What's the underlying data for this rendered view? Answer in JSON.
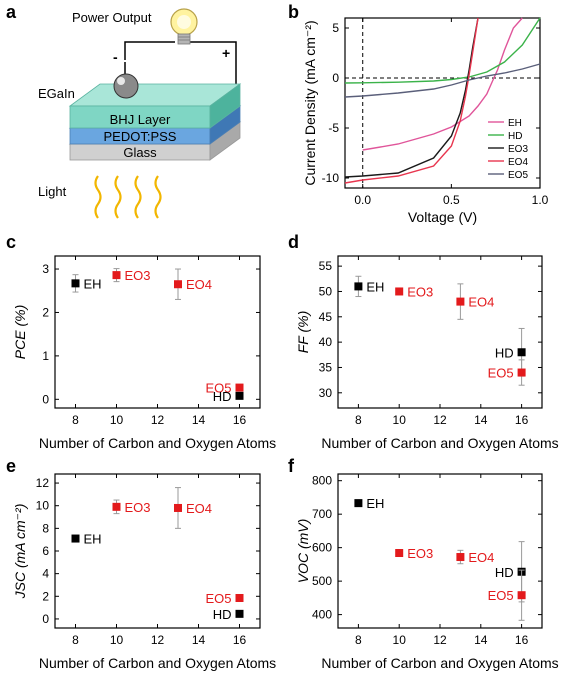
{
  "panels": {
    "a": "a",
    "b": "b",
    "c": "c",
    "d": "d",
    "e": "e",
    "f": "f"
  },
  "schematic": {
    "power_output": "Power Output",
    "minus": "-",
    "plus": "+",
    "egain": "EGaIn",
    "bhj": "BHJ Layer",
    "pedot": "PEDOT:PSS",
    "glass": "Glass",
    "light": "Light",
    "colors": {
      "bhj": "#7fd6c4",
      "pedot": "#6aa6e0",
      "glass": "#d8d8d8",
      "bulb": "#fff3a0",
      "rays": "#f2b600"
    }
  },
  "colors": {
    "black": "#000000",
    "red": "#e31a1c",
    "EH": "#e0559a",
    "HD": "#3bb34a",
    "EO3": "#1a1a1a",
    "EO4": "#e8364f",
    "EO5": "#5a5f7a",
    "error": "#9a9a9a"
  },
  "chart_data": [
    {
      "type": "line",
      "panel": "b",
      "xlabel": "Voltage (V)",
      "ylabel": "Current Density (mA cm⁻²)",
      "xlim": [
        -0.1,
        1.0
      ],
      "ylim": [
        -11,
        6
      ],
      "xticks": [
        "0.0",
        "0.5",
        "1.0"
      ],
      "yticks": [
        "-10",
        "-5",
        "0",
        "5"
      ],
      "legend": "bottom-right",
      "series": [
        {
          "name": "EH",
          "x": [
            0,
            0.2,
            0.4,
            0.5,
            0.6,
            0.65,
            0.7,
            0.73,
            0.76,
            0.8,
            0.85,
            0.9
          ],
          "y": [
            -7.2,
            -6.6,
            -5.6,
            -4.9,
            -3.8,
            -2.8,
            -1.6,
            -0.4,
            0.8,
            2.8,
            5.0,
            6.5
          ]
        },
        {
          "name": "HD",
          "x": [
            -0.1,
            0,
            0.2,
            0.4,
            0.5,
            0.6,
            0.7,
            0.8,
            0.9,
            1.0
          ],
          "y": [
            -0.5,
            -0.48,
            -0.42,
            -0.3,
            -0.15,
            0.1,
            0.6,
            1.6,
            3.3,
            6.0
          ]
        },
        {
          "name": "EO3",
          "x": [
            -0.1,
            0,
            0.2,
            0.4,
            0.5,
            0.55,
            0.58,
            0.6,
            0.62,
            0.65
          ],
          "y": [
            -9.9,
            -9.8,
            -9.5,
            -8.0,
            -5.8,
            -3.5,
            -1.2,
            0.8,
            3.0,
            6.5
          ]
        },
        {
          "name": "EO4",
          "x": [
            -0.1,
            0,
            0.2,
            0.4,
            0.5,
            0.55,
            0.58,
            0.6,
            0.62,
            0.65
          ],
          "y": [
            -10.5,
            -10.2,
            -9.8,
            -8.8,
            -6.8,
            -4.3,
            -1.8,
            0.3,
            2.5,
            6.0
          ]
        },
        {
          "name": "EO5",
          "x": [
            -0.1,
            0,
            0.2,
            0.4,
            0.5,
            0.6,
            0.7,
            0.8,
            0.9,
            1.0
          ],
          "y": [
            -1.9,
            -1.8,
            -1.5,
            -1.1,
            -0.7,
            -0.2,
            0.2,
            0.5,
            0.9,
            1.4
          ]
        }
      ]
    },
    {
      "type": "scatter",
      "panel": "c",
      "xlabel": "Number of Carbon and Oxygen Atoms",
      "ylabel": "PCE (%)",
      "xlim": [
        7,
        17
      ],
      "ylim": [
        -0.2,
        3.3
      ],
      "xticks": [
        "8",
        "10",
        "12",
        "14",
        "16"
      ],
      "yticks": [
        "0",
        "1",
        "2",
        "3"
      ],
      "points": [
        {
          "label": "EH",
          "x": 8,
          "y": 2.67,
          "err": 0.2,
          "color": "black"
        },
        {
          "label": "EO3",
          "x": 10,
          "y": 2.86,
          "err": 0.15,
          "color": "red"
        },
        {
          "label": "EO4",
          "x": 13,
          "y": 2.65,
          "err": 0.35,
          "color": "red"
        },
        {
          "label": "EO5",
          "x": 16,
          "y": 0.27,
          "err": 0.05,
          "color": "red"
        },
        {
          "label": "HD",
          "x": 16,
          "y": 0.08,
          "err": 0.03,
          "color": "black"
        }
      ]
    },
    {
      "type": "scatter",
      "panel": "d",
      "xlabel": "Number of Carbon and Oxygen Atoms",
      "ylabel": "FF (%)",
      "xlim": [
        7,
        17
      ],
      "ylim": [
        27,
        57
      ],
      "xticks": [
        "8",
        "10",
        "12",
        "14",
        "16"
      ],
      "yticks": [
        "30",
        "35",
        "40",
        "45",
        "50",
        "55"
      ],
      "points": [
        {
          "label": "EH",
          "x": 8,
          "y": 51,
          "err": 2,
          "color": "black"
        },
        {
          "label": "EO3",
          "x": 10,
          "y": 50,
          "err": 0.6,
          "color": "red"
        },
        {
          "label": "EO4",
          "x": 13,
          "y": 48,
          "err": 3.5,
          "color": "red"
        },
        {
          "label": "HD",
          "x": 16,
          "y": 38,
          "err": 4.7,
          "color": "black"
        },
        {
          "label": "EO5",
          "x": 16,
          "y": 34,
          "err": 2.5,
          "color": "red"
        }
      ]
    },
    {
      "type": "scatter",
      "panel": "e",
      "xlabel": "Number of Carbon and Oxygen Atoms",
      "ylabel": "JSC (mA cm⁻²)",
      "xlim": [
        7,
        17
      ],
      "ylim": [
        -0.8,
        12.8
      ],
      "xticks": [
        "8",
        "10",
        "12",
        "14",
        "16"
      ],
      "yticks": [
        "0",
        "2",
        "4",
        "6",
        "8",
        "10",
        "12"
      ],
      "points": [
        {
          "label": "EH",
          "x": 8,
          "y": 7.1,
          "err": 0.3,
          "color": "black"
        },
        {
          "label": "EO3",
          "x": 10,
          "y": 9.9,
          "err": 0.6,
          "color": "red"
        },
        {
          "label": "EO4",
          "x": 13,
          "y": 9.8,
          "err": 1.8,
          "color": "red"
        },
        {
          "label": "EO5",
          "x": 16,
          "y": 1.85,
          "err": 0.2,
          "color": "red"
        },
        {
          "label": "HD",
          "x": 16,
          "y": 0.45,
          "err": 0.1,
          "color": "black"
        }
      ]
    },
    {
      "type": "scatter",
      "panel": "f",
      "xlabel": "Number of Carbon and Oxygen Atoms",
      "ylabel": "VOC (mV)",
      "xlim": [
        7,
        17
      ],
      "ylim": [
        360,
        820
      ],
      "xticks": [
        "8",
        "10",
        "12",
        "14",
        "16"
      ],
      "yticks": [
        "400",
        "500",
        "600",
        "700",
        "800"
      ],
      "points": [
        {
          "label": "EH",
          "x": 8,
          "y": 733,
          "err": 5,
          "color": "black"
        },
        {
          "label": "EO3",
          "x": 10,
          "y": 584,
          "err": 8,
          "color": "red"
        },
        {
          "label": "EO4",
          "x": 13,
          "y": 572,
          "err": 20,
          "color": "red"
        },
        {
          "label": "HD",
          "x": 16,
          "y": 528,
          "err": 90,
          "color": "black"
        },
        {
          "label": "EO5",
          "x": 16,
          "y": 458,
          "err": 75,
          "color": "red"
        }
      ]
    }
  ]
}
